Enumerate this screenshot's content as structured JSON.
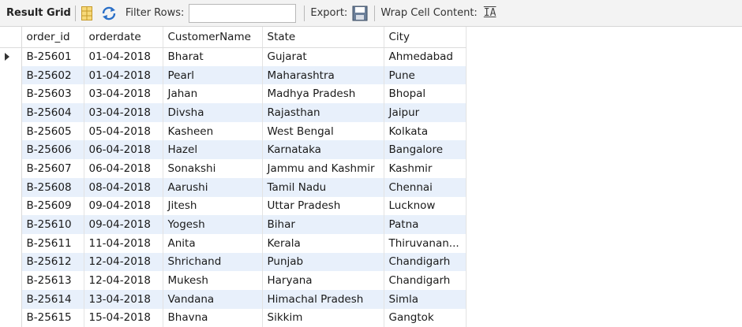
{
  "toolbar": {
    "result_grid_label": "Result Grid",
    "filter_rows_label": "Filter Rows:",
    "filter_value": "",
    "export_label": "Export:",
    "wrap_cell_label": "Wrap Cell Content:",
    "wrap_icon_glyph": "IA"
  },
  "columns": [
    "order_id",
    "orderdate",
    "CustomerName",
    "State",
    "City"
  ],
  "rows": [
    [
      "B-25601",
      "01-04-2018",
      "Bharat",
      "Gujarat",
      "Ahmedabad"
    ],
    [
      "B-25602",
      "01-04-2018",
      "Pearl",
      "Maharashtra",
      "Pune"
    ],
    [
      "B-25603",
      "03-04-2018",
      "Jahan",
      "Madhya Pradesh",
      "Bhopal"
    ],
    [
      "B-25604",
      "03-04-2018",
      "Divsha",
      "Rajasthan",
      "Jaipur"
    ],
    [
      "B-25605",
      "05-04-2018",
      "Kasheen",
      "West Bengal",
      "Kolkata"
    ],
    [
      "B-25606",
      "06-04-2018",
      "Hazel",
      "Karnataka",
      "Bangalore"
    ],
    [
      "B-25607",
      "06-04-2018",
      "Sonakshi",
      "Jammu and Kashmir",
      "Kashmir"
    ],
    [
      "B-25608",
      "08-04-2018",
      "Aarushi",
      "Tamil Nadu",
      "Chennai"
    ],
    [
      "B-25609",
      "09-04-2018",
      "Jitesh",
      "Uttar Pradesh",
      "Lucknow"
    ],
    [
      "B-25610",
      "09-04-2018",
      "Yogesh",
      "Bihar",
      "Patna"
    ],
    [
      "B-25611",
      "11-04-2018",
      "Anita",
      "Kerala",
      "Thiruvanan..."
    ],
    [
      "B-25612",
      "12-04-2018",
      "Shrichand",
      "Punjab",
      "Chandigarh"
    ],
    [
      "B-25613",
      "12-04-2018",
      "Mukesh",
      "Haryana",
      "Chandigarh"
    ],
    [
      "B-25614",
      "13-04-2018",
      "Vandana",
      "Himachal Pradesh",
      "Simla"
    ],
    [
      "B-25615",
      "15-04-2018",
      "Bhavna",
      "Sikkim",
      "Gangtok"
    ]
  ],
  "icons": {
    "grid": "grid-icon",
    "refresh": "refresh-icon",
    "export": "export-icon",
    "wrap": "wrap-cell-icon",
    "row_indicator": "row-pointer-icon"
  },
  "colors": {
    "alt_row": "#e8f0fb",
    "toolbar_bg": "#f3f3f3"
  }
}
